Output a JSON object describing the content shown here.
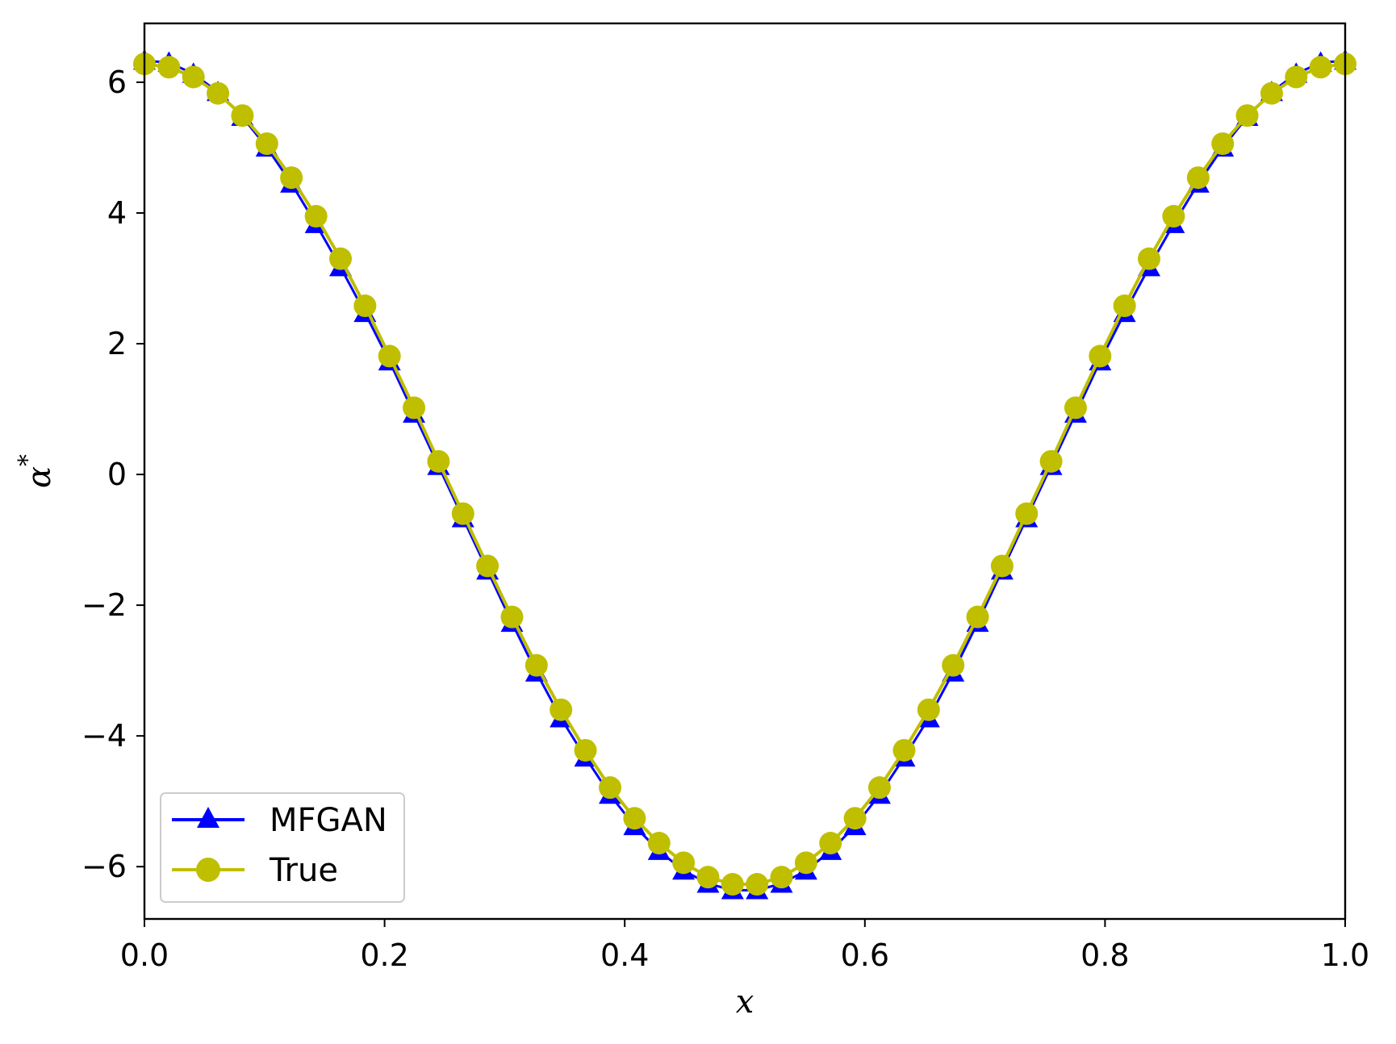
{
  "chart_data": {
    "type": "line",
    "title": "",
    "xlabel": "x",
    "ylabel": "α*",
    "xlim": [
      0.0,
      1.0
    ],
    "ylim": [
      -6.8,
      6.9
    ],
    "xticks": [
      0.0,
      0.2,
      0.4,
      0.6,
      0.8,
      1.0
    ],
    "xtick_labels": [
      "0.0",
      "0.2",
      "0.4",
      "0.6",
      "0.8",
      "1.0"
    ],
    "yticks": [
      6,
      4,
      2,
      0,
      -2,
      -4,
      -6
    ],
    "ytick_labels": [
      "6",
      "4",
      "2",
      "0",
      "−2",
      "−4",
      "−6"
    ],
    "grid": false,
    "legend_position": "lower-left",
    "x": [
      0.0,
      0.0204,
      0.0408,
      0.0612,
      0.0816,
      0.102,
      0.1224,
      0.1429,
      0.1633,
      0.1837,
      0.2041,
      0.2245,
      0.2449,
      0.2653,
      0.2857,
      0.3061,
      0.3265,
      0.3469,
      0.3673,
      0.3878,
      0.4082,
      0.4286,
      0.449,
      0.4694,
      0.4898,
      0.5102,
      0.5306,
      0.551,
      0.5714,
      0.5918,
      0.6122,
      0.6327,
      0.6531,
      0.6735,
      0.6939,
      0.7143,
      0.7347,
      0.7551,
      0.7755,
      0.7959,
      0.8163,
      0.8367,
      0.8571,
      0.8776,
      0.898,
      0.9184,
      0.9388,
      0.9592,
      0.9796,
      1.0
    ],
    "series": [
      {
        "name": "MFGAN",
        "color": "#0000ff",
        "marker": "triangle",
        "values": [
          6.33,
          6.3,
          6.13,
          5.85,
          5.47,
          5.0,
          4.45,
          3.83,
          3.17,
          2.47,
          1.73,
          0.93,
          0.13,
          -0.67,
          -1.47,
          -2.27,
          -3.03,
          -3.73,
          -4.33,
          -4.9,
          -5.38,
          -5.76,
          -6.06,
          -6.26,
          -6.36,
          -6.36,
          -6.26,
          -6.06,
          -5.76,
          -5.38,
          -4.9,
          -4.33,
          -3.73,
          -3.03,
          -2.27,
          -1.47,
          -0.67,
          0.13,
          0.93,
          1.73,
          2.47,
          3.17,
          3.83,
          4.45,
          5.0,
          5.47,
          5.85,
          6.13,
          6.3,
          6.33
        ]
      },
      {
        "name": "True",
        "color": "#bfbf00",
        "marker": "circle",
        "values": [
          6.28,
          6.23,
          6.08,
          5.83,
          5.49,
          5.06,
          4.54,
          3.95,
          3.3,
          2.58,
          1.81,
          1.02,
          0.2,
          -0.6,
          -1.4,
          -2.18,
          -2.92,
          -3.6,
          -4.22,
          -4.79,
          -5.26,
          -5.64,
          -5.94,
          -6.16,
          -6.27,
          -6.27,
          -6.16,
          -5.94,
          -5.64,
          -5.26,
          -4.79,
          -4.22,
          -3.6,
          -2.92,
          -2.18,
          -1.4,
          -0.6,
          0.2,
          1.02,
          1.81,
          2.58,
          3.3,
          3.95,
          4.54,
          5.06,
          5.49,
          5.83,
          6.08,
          6.23,
          6.28
        ]
      }
    ]
  }
}
